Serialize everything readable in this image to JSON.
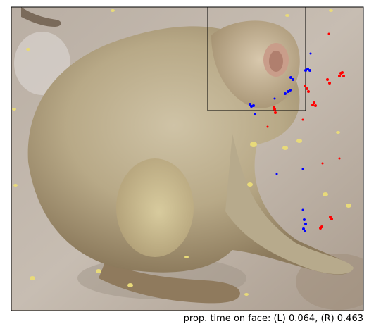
{
  "caption": "prop. time on face: (L) 0.064, (R) 0.463",
  "colors": {
    "left_eye_points": "#0000ff",
    "right_eye_points": "#ff0000",
    "roi_box": "#000000"
  },
  "photo": {
    "subject": "macaque monkey seated on ground",
    "overlay": "gaze fixation points and face region-of-interest box"
  }
}
